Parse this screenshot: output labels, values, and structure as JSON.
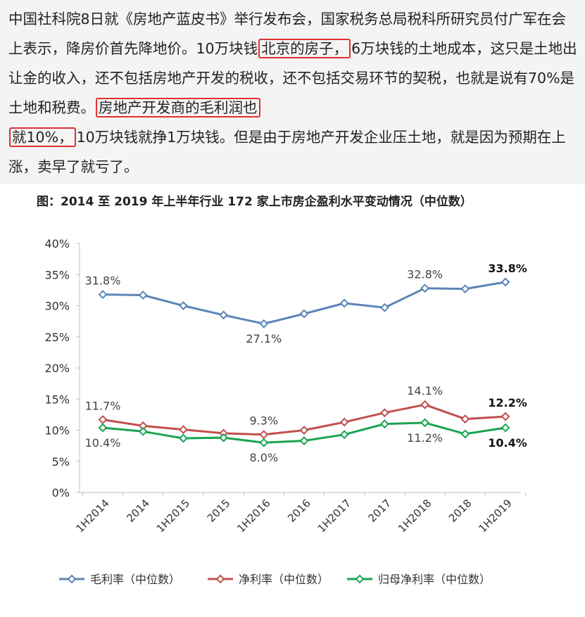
{
  "article": {
    "p1": "中国社科院8日就《房地产蓝皮书》举行发布会，国家税务总局税科所研究员付广军在会上表示，降房价首先降地价。10万块钱",
    "hl1": "北京的房子，",
    "p2": "6万块钱的土地成本，这只是土地出让金的收入，还不包括房地产开发的税收，还不包括交易环节的契税，也就是说有70%是土地和税费。",
    "hl2a": "房地产开发商的毛利润也",
    "hl2b": "就10%，",
    "p3": "10万块钱就挣1万块钱。但是由于房地产开发企业压土地，就是因为预期在上涨，卖早了就亏了。"
  },
  "colors": {
    "gross": "#5b85b8",
    "net": "#c0504d",
    "parent": "#19a450",
    "highlight_box": "#e03030"
  },
  "chart_data": {
    "type": "line",
    "title": "图：2014 至 2019 年上半年行业 172 家上市房企盈利水平变动情况（中位数）",
    "xlabel": "",
    "ylabel": "",
    "ylim": [
      0,
      40
    ],
    "yticks": [
      0,
      5,
      10,
      15,
      20,
      25,
      30,
      35,
      40
    ],
    "ytick_labels": [
      "0%",
      "5%",
      "10%",
      "15%",
      "20%",
      "25%",
      "30%",
      "35%",
      "40%"
    ],
    "categories": [
      "1H2014",
      "2014",
      "1H2015",
      "2015",
      "1H2016",
      "2016",
      "1H2017",
      "2017",
      "1H2018",
      "2018",
      "1H2019"
    ],
    "series": [
      {
        "name": "毛利率（中位数）",
        "color": "#5b85b8",
        "values": [
          31.8,
          31.7,
          30.0,
          28.5,
          27.1,
          28.7,
          30.4,
          29.7,
          32.8,
          32.7,
          33.8
        ],
        "labels": [
          {
            "index": 0,
            "text": "31.8%",
            "pos": "above"
          },
          {
            "index": 4,
            "text": "27.1%",
            "pos": "below"
          },
          {
            "index": 8,
            "text": "32.8%",
            "pos": "above"
          },
          {
            "index": 10,
            "text": "33.8%",
            "pos": "above",
            "bold": true
          }
        ]
      },
      {
        "name": "净利率（中位数）",
        "color": "#c0504d",
        "values": [
          11.7,
          10.7,
          10.1,
          9.5,
          9.3,
          10.0,
          11.3,
          12.8,
          14.1,
          11.8,
          12.2
        ],
        "labels": [
          {
            "index": 0,
            "text": "11.7%",
            "pos": "above"
          },
          {
            "index": 4,
            "text": "9.3%",
            "pos": "above"
          },
          {
            "index": 8,
            "text": "14.1%",
            "pos": "above"
          },
          {
            "index": 10,
            "text": "12.2%",
            "pos": "above",
            "bold": true
          }
        ]
      },
      {
        "name": "归母净利率（中位数）",
        "color": "#19a450",
        "values": [
          10.4,
          9.8,
          8.7,
          8.8,
          8.0,
          8.3,
          9.3,
          11.0,
          11.2,
          9.4,
          10.4
        ],
        "labels": [
          {
            "index": 0,
            "text": "10.4%",
            "pos": "below"
          },
          {
            "index": 4,
            "text": "8.0%",
            "pos": "below"
          },
          {
            "index": 8,
            "text": "11.2%",
            "pos": "below"
          },
          {
            "index": 10,
            "text": "10.4%",
            "pos": "below",
            "bold": true
          }
        ]
      }
    ],
    "legend": "bottom",
    "grid": false
  }
}
